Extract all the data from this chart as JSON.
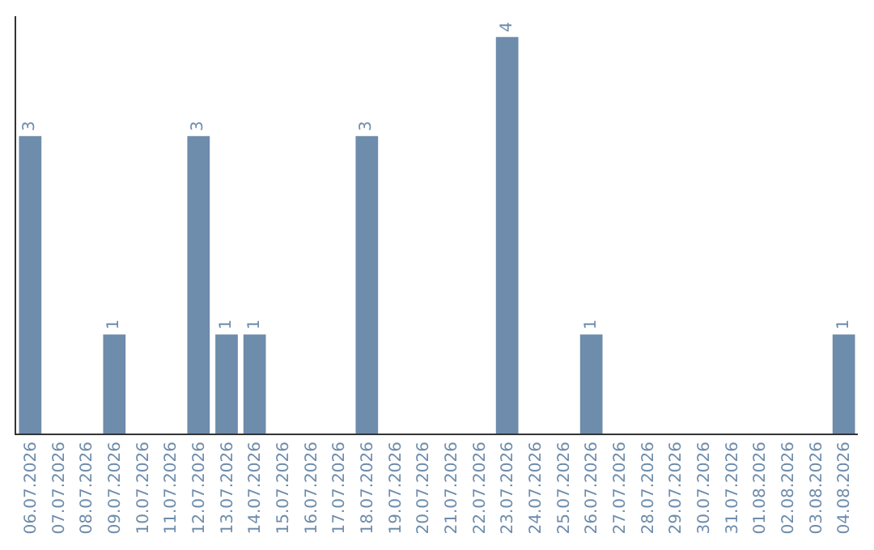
{
  "chart_data": {
    "type": "bar",
    "categories": [
      "06.07.2026",
      "07.07.2026",
      "08.07.2026",
      "09.07.2026",
      "10.07.2026",
      "11.07.2026",
      "12.07.2026",
      "13.07.2026",
      "14.07.2026",
      "15.07.2026",
      "16.07.2026",
      "17.07.2026",
      "18.07.2026",
      "19.07.2026",
      "20.07.2026",
      "21.07.2026",
      "22.07.2026",
      "23.07.2026",
      "24.07.2026",
      "25.07.2026",
      "26.07.2026",
      "27.07.2026",
      "28.07.2026",
      "29.07.2026",
      "30.07.2026",
      "31.07.2026",
      "01.08.2026",
      "02.08.2026",
      "03.08.2026",
      "04.08.2026"
    ],
    "values": [
      3,
      0,
      0,
      1,
      0,
      0,
      3,
      1,
      1,
      0,
      0,
      0,
      3,
      0,
      0,
      0,
      0,
      4,
      0,
      0,
      1,
      0,
      0,
      0,
      0,
      0,
      0,
      0,
      0,
      1
    ],
    "value_labels": [
      "3",
      null,
      null,
      "1",
      null,
      null,
      "3",
      "1",
      "1",
      null,
      null,
      null,
      "3",
      null,
      null,
      null,
      null,
      "4",
      null,
      null,
      "1",
      null,
      null,
      null,
      null,
      null,
      null,
      null,
      null,
      "1"
    ],
    "color": "#6e8cab",
    "tick_labels": "x"
  }
}
